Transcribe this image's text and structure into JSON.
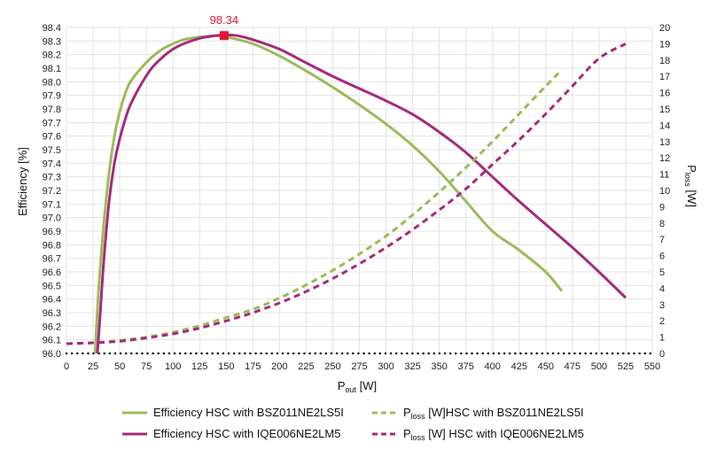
{
  "chart_data": {
    "type": "line",
    "title": "",
    "xlabel_main": "P",
    "xlabel_sub": "out",
    "xlabel_unit": " [W]",
    "ylabel_left": "Efficiency [%]",
    "ylabel_right_main": "P",
    "ylabel_right_sub": "loss",
    "ylabel_right_unit": " [W]",
    "x_range": [
      0,
      550
    ],
    "x_ticks": [
      0,
      25,
      50,
      75,
      100,
      125,
      150,
      175,
      200,
      225,
      250,
      275,
      300,
      325,
      350,
      375,
      400,
      425,
      450,
      475,
      500,
      525,
      550
    ],
    "y_left_range": [
      96.0,
      98.4
    ],
    "y_left_ticks": [
      "96.0",
      "96.1",
      "96.2",
      "96.3",
      "96.4",
      "96.5",
      "96.6",
      "96.7",
      "96.8",
      "96.9",
      "97.0",
      "97.1",
      "97.2",
      "97.3",
      "97.4",
      "97.5",
      "97.6",
      "97.7",
      "97.8",
      "97.9",
      "98.0",
      "98.1",
      "98.2",
      "98.3",
      "98.4"
    ],
    "y_right_range": [
      0,
      20
    ],
    "y_right_ticks": [
      "0",
      "1",
      "2",
      "3",
      "4",
      "5",
      "6",
      "7",
      "8",
      "9",
      "10",
      "11",
      "12",
      "13",
      "14",
      "15",
      "16",
      "17",
      "18",
      "19",
      "20"
    ],
    "grid": true,
    "legend_position": "bottom",
    "peak_annotation": {
      "text": "98.34",
      "x": 148,
      "y": 98.34,
      "color": "#e31937"
    },
    "series": [
      {
        "name": "Efficiency HSC with BSZ011NE2LS5I",
        "axis": "left",
        "style": "solid",
        "color": "#9bbb59",
        "x": [
          27,
          30,
          35,
          40,
          45,
          50,
          55,
          60,
          70,
          80,
          90,
          100,
          110,
          125,
          140,
          150,
          175,
          200,
          225,
          250,
          275,
          300,
          325,
          350,
          375,
          400,
          425,
          450,
          465
        ],
        "y": [
          96.0,
          96.45,
          96.95,
          97.33,
          97.6,
          97.78,
          97.91,
          98.0,
          98.1,
          98.18,
          98.24,
          98.28,
          98.31,
          98.33,
          98.34,
          98.33,
          98.28,
          98.19,
          98.08,
          97.96,
          97.83,
          97.69,
          97.53,
          97.34,
          97.12,
          96.9,
          96.76,
          96.6,
          96.46
        ]
      },
      {
        "name": "Efficiency HSC with IQE006NE2LM5",
        "axis": "left",
        "style": "solid",
        "color": "#a62a7a",
        "x": [
          29,
          31,
          35,
          40,
          45,
          50,
          55,
          60,
          70,
          80,
          90,
          100,
          110,
          125,
          140,
          150,
          160,
          175,
          200,
          225,
          250,
          275,
          300,
          325,
          350,
          375,
          400,
          425,
          450,
          475,
          500,
          525
        ],
        "y": [
          96.0,
          96.22,
          96.68,
          97.12,
          97.4,
          97.58,
          97.72,
          97.83,
          97.98,
          98.1,
          98.18,
          98.24,
          98.28,
          98.32,
          98.34,
          98.345,
          98.34,
          98.31,
          98.24,
          98.14,
          98.04,
          97.95,
          97.86,
          97.76,
          97.63,
          97.48,
          97.3,
          97.12,
          96.95,
          96.78,
          96.6,
          96.41
        ]
      },
      {
        "name": "P<sub>loss</sub> [W]HSC with BSZ011NE2LS5I",
        "name_main": "P",
        "name_sub": "loss",
        "name_rest": " [W]HSC with BSZ011NE2LS5I",
        "axis": "right",
        "style": "dashed",
        "color": "#9bbb59",
        "x": [
          0,
          25,
          50,
          75,
          100,
          125,
          150,
          175,
          200,
          225,
          250,
          275,
          300,
          325,
          350,
          375,
          400,
          425,
          450,
          465
        ],
        "y": [
          0.6,
          0.65,
          0.8,
          1.0,
          1.3,
          1.7,
          2.2,
          2.7,
          3.4,
          4.2,
          5.1,
          6.1,
          7.2,
          8.5,
          9.9,
          11.4,
          13.0,
          14.7,
          16.4,
          17.4
        ]
      },
      {
        "name": "P<sub>loss</sub> [W] HSC with IQE006NE2LM5",
        "name_main": "P",
        "name_sub": "loss",
        "name_rest": " [W] HSC with IQE006NE2LM5",
        "axis": "right",
        "style": "dashed",
        "color": "#a62a7a",
        "x": [
          0,
          25,
          50,
          75,
          100,
          125,
          150,
          175,
          200,
          225,
          250,
          275,
          300,
          325,
          350,
          375,
          400,
          425,
          450,
          475,
          500,
          525
        ],
        "y": [
          0.6,
          0.65,
          0.75,
          0.95,
          1.2,
          1.55,
          2.0,
          2.5,
          3.1,
          3.8,
          4.6,
          5.5,
          6.5,
          7.6,
          8.8,
          10.1,
          11.6,
          13.1,
          14.7,
          16.4,
          18.1,
          19.0
        ]
      }
    ],
    "baseline": {
      "style": "dotted",
      "color": "#000000",
      "y_right": 0
    }
  }
}
